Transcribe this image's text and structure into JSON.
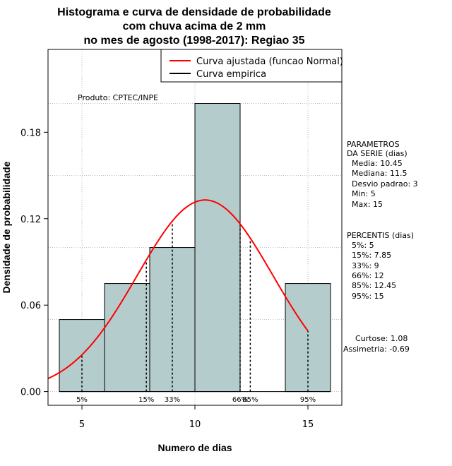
{
  "chart_data": {
    "type": "bar",
    "title_lines": [
      "Histograma e curva de densidade de probabilidade",
      "com chuva acima de 2 mm",
      "no mes de agosto (1998-2017): Regiao 35"
    ],
    "xlabel": "Numero de dias",
    "ylabel": "Densidade de probabilidade",
    "xlim": [
      3.5,
      16.5
    ],
    "ylim": [
      -0.0095,
      0.2375
    ],
    "x_ticks": [
      5,
      10,
      15
    ],
    "y_ticks": [
      0.0,
      0.06,
      0.12,
      0.18
    ],
    "y_tick_labels": [
      "0.00",
      "0.06",
      "0.12",
      "0.18"
    ],
    "grid": true,
    "histogram": {
      "bins": [
        [
          4,
          6
        ],
        [
          6,
          8
        ],
        [
          8,
          10
        ],
        [
          10,
          12
        ],
        [
          12,
          14
        ],
        [
          14,
          16
        ]
      ],
      "density": [
        0.05,
        0.075,
        0.1,
        0.2,
        0.0,
        0.075
      ],
      "fill": "#b5cccc"
    },
    "normal_curve": {
      "name": "Curva ajustada (funcao Normal)",
      "mean": 10.45,
      "sd": 3,
      "x_from": 3.5,
      "x_to": 15,
      "color": "#ff0000"
    },
    "empirical_curve": {
      "name": "Curva empirica",
      "color": "#000000"
    },
    "percentiles": [
      {
        "label": "5%",
        "x": 5
      },
      {
        "label": "15%",
        "x": 7.85
      },
      {
        "label": "33%",
        "x": 9
      },
      {
        "label": "66%",
        "x": 12
      },
      {
        "label": "85%",
        "x": 12.45
      },
      {
        "label": "95%",
        "x": 15
      }
    ],
    "legend_position": "top-right",
    "legend": [
      "Curva ajustada (funcao Normal)",
      "Curva empirica"
    ],
    "annotation": "Produto: CPTEC/INPE"
  },
  "side_panel": {
    "parametros": [
      "PARAMETROS",
      "DA SERIE (dias)",
      "Media: 10.45",
      "Mediana: 11.5",
      "Desvio padrao: 3",
      "Min: 5",
      "Max: 15"
    ],
    "percentis": [
      "PERCENTIS (dias)",
      "5%: 5",
      "15%: 7.85",
      "33%: 9",
      "66%: 12",
      "85%: 12.45",
      "95%: 15"
    ],
    "shape": [
      "Curtose: 1.08",
      "Assimetria: -0.69"
    ]
  }
}
